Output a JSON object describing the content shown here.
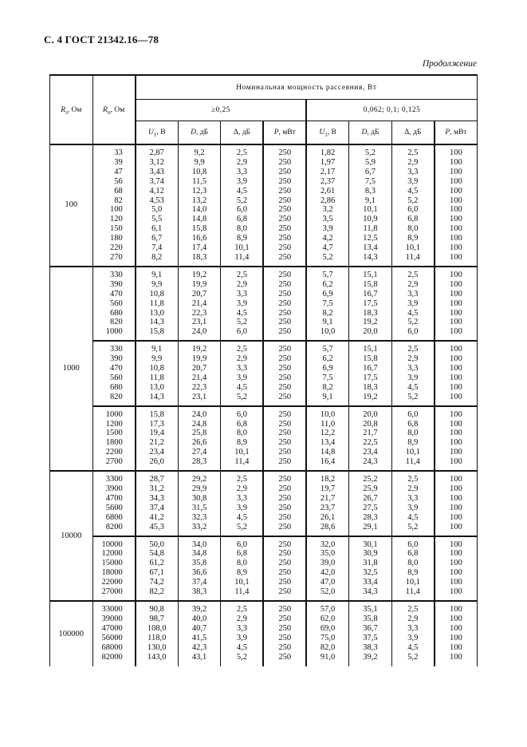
{
  "page": {
    "header_left": "С. 4 ГОСТ 21342.16—78",
    "continuation_label": "Продолжение"
  },
  "table": {
    "r3col": {
      "sym": "R",
      "sub": "з",
      "rest": ", Ом"
    },
    "rncol": {
      "sym": "R",
      "sub": "п",
      "rest": ", Ом"
    },
    "power_header": "Номинальная мощность рассеяния, Вт",
    "power_groups": [
      "≥0,25",
      "0,062; 0,1; 0,125"
    ],
    "columns": [
      {
        "sym": "U",
        "sub": "1",
        "rest": ", В"
      },
      {
        "sym": "D",
        "sub": "",
        "rest": ", дБ"
      },
      {
        "sym": "Δ",
        "sub": "",
        "rest": ", дБ"
      },
      {
        "sym": "P",
        "sub": "",
        "rest": ", мВт"
      },
      {
        "sym": "U",
        "sub": "1",
        "rest": ", В"
      },
      {
        "sym": "D",
        "sub": "",
        "rest": ", дБ"
      },
      {
        "sym": "Δ",
        "sub": "",
        "rest": ", дБ"
      },
      {
        "sym": "P",
        "sub": "",
        "rest": ", мВт"
      }
    ],
    "groups": [
      {
        "r3": "100",
        "subgroups": [
          {
            "rows": [
              [
                "33",
                "2,87",
                "9,2",
                "2,5",
                "250",
                "1,82",
                "5,2",
                "2,5",
                "100"
              ],
              [
                "39",
                "3,12",
                "9,9",
                "2,9",
                "250",
                "1,97",
                "5,9",
                "2,9",
                "100"
              ],
              [
                "47",
                "3,43",
                "10,8",
                "3,3",
                "250",
                "2,17",
                "6,7",
                "3,3",
                "100"
              ],
              [
                "56",
                "3,74",
                "11,5",
                "3,9",
                "250",
                "2,37",
                "7,5",
                "3,9",
                "100"
              ],
              [
                "68",
                "4,12",
                "12,3",
                "4,5",
                "250",
                "2,61",
                "8,3",
                "4,5",
                "100"
              ],
              [
                "82",
                "4,53",
                "13,2",
                "5,2",
                "250",
                "2,86",
                "9,1",
                "5,2",
                "100"
              ],
              [
                "100",
                "5,0",
                "14,0",
                "6,0",
                "250",
                "3,2",
                "10,1",
                "6,0",
                "100"
              ],
              [
                "120",
                "5,5",
                "14,8",
                "6,8",
                "250",
                "3,5",
                "10,9",
                "6,8",
                "100"
              ],
              [
                "150",
                "6,1",
                "15,8",
                "8,0",
                "250",
                "3,9",
                "11,8",
                "8,0",
                "100"
              ],
              [
                "180",
                "6,7",
                "16,6",
                "8,9",
                "250",
                "4,2",
                "12,5",
                "8,9",
                "100"
              ],
              [
                "220",
                "7,4",
                "17,4",
                "10,1",
                "250",
                "4,7",
                "13,4",
                "10,1",
                "100"
              ],
              [
                "270",
                "8,2",
                "18,3",
                "11,4",
                "250",
                "5,2",
                "14,3",
                "11,4",
                "100"
              ]
            ]
          }
        ]
      },
      {
        "r3": "1000",
        "subgroups": [
          {
            "rows": [
              [
                "330",
                "9,1",
                "19,2",
                "2,5",
                "250",
                "5,7",
                "15,1",
                "2,5",
                "100"
              ],
              [
                "390",
                "9,9",
                "19,9",
                "2,9",
                "250",
                "6,2",
                "15,8",
                "2,9",
                "100"
              ],
              [
                "470",
                "10,8",
                "20,7",
                "3,3",
                "250",
                "6,9",
                "16,7",
                "3,3",
                "100"
              ],
              [
                "560",
                "11,8",
                "21,4",
                "3,9",
                "250",
                "7,5",
                "17,5",
                "3,9",
                "100"
              ],
              [
                "680",
                "13,0",
                "22,3",
                "4,5",
                "250",
                "8,2",
                "18,3",
                "4,5",
                "100"
              ],
              [
                "820",
                "14,3",
                "23,1",
                "5,2",
                "250",
                "9,1",
                "19,2",
                "5,2",
                "100"
              ],
              [
                "1000",
                "15,8",
                "24,0",
                "6,0",
                "250",
                "10,0",
                "20,0",
                "6,0",
                "100"
              ]
            ]
          },
          {
            "rows": [
              [
                "330",
                "9,1",
                "19,2",
                "2,5",
                "250",
                "5,7",
                "15,1",
                "2,5",
                "100"
              ],
              [
                "390",
                "9,9",
                "19,9",
                "2,9",
                "250",
                "6,2",
                "15,8",
                "2,9",
                "100"
              ],
              [
                "470",
                "10,8",
                "20,7",
                "3,3",
                "250",
                "6,9",
                "16,7",
                "3,3",
                "100"
              ],
              [
                "560",
                "11,8",
                "21,4",
                "3,9",
                "250",
                "7,5",
                "17,5",
                "3,9",
                "100"
              ],
              [
                "680",
                "13,0",
                "22,3",
                "4,5",
                "250",
                "8,2",
                "18,3",
                "4,5",
                "100"
              ],
              [
                "820",
                "14,3",
                "23,1",
                "5,2",
                "250",
                "9,1",
                "19,2",
                "5,2",
                "100"
              ]
            ]
          },
          {
            "rows": [
              [
                "1000",
                "15,8",
                "24,0",
                "6,0",
                "250",
                "10,0",
                "20,0",
                "6,0",
                "100"
              ],
              [
                "1200",
                "17,3",
                "24,8",
                "6,8",
                "250",
                "11,0",
                "20,8",
                "6,8",
                "100"
              ],
              [
                "1500",
                "19,4",
                "25,8",
                "8,0",
                "250",
                "12,2",
                "21,7",
                "8,0",
                "100"
              ],
              [
                "1800",
                "21,2",
                "26,6",
                "8,9",
                "250",
                "13,4",
                "22,5",
                "8,9",
                "100"
              ],
              [
                "2200",
                "23,4",
                "27,4",
                "10,1",
                "250",
                "14,8",
                "23,4",
                "10,1",
                "100"
              ],
              [
                "2700",
                "26,0",
                "28,3",
                "11,4",
                "250",
                "16,4",
                "24,3",
                "11,4",
                "100"
              ]
            ]
          }
        ]
      },
      {
        "r3": "10000",
        "subgroups": [
          {
            "rows": [
              [
                "3300",
                "28,7",
                "29,2",
                "2,5",
                "250",
                "18,2",
                "25,2",
                "2,5",
                "100"
              ],
              [
                "3900",
                "31,2",
                "29,9",
                "2,9",
                "250",
                "19,7",
                "25,9",
                "2,9",
                "100"
              ],
              [
                "4700",
                "34,3",
                "30,8",
                "3,3",
                "250",
                "21,7",
                "26,7",
                "3,3",
                "100"
              ],
              [
                "5600",
                "37,4",
                "31,5",
                "3,9",
                "250",
                "23,7",
                "27,5",
                "3,9",
                "100"
              ],
              [
                "6800",
                "41,2",
                "32,3",
                "4,5",
                "250",
                "26,1",
                "28,3",
                "4,5",
                "100"
              ],
              [
                "8200",
                "45,3",
                "33,2",
                "5,2",
                "250",
                "28,6",
                "29,1",
                "5,2",
                "100"
              ]
            ]
          },
          {
            "rows": [
              [
                "10000",
                "50,0",
                "34,0",
                "6,0",
                "250",
                "32,0",
                "30,1",
                "6,0",
                "100"
              ],
              [
                "12000",
                "54,8",
                "34,8",
                "6,8",
                "250",
                "35,0",
                "30,9",
                "6,8",
                "100"
              ],
              [
                "15000",
                "61,2",
                "35,8",
                "8,0",
                "250",
                "39,0",
                "31,8",
                "8,0",
                "100"
              ],
              [
                "18000",
                "67,1",
                "36,6",
                "8,9",
                "250",
                "42,0",
                "32,5",
                "8,9",
                "100"
              ],
              [
                "22000",
                "74,2",
                "37,4",
                "10,1",
                "250",
                "47,0",
                "33,4",
                "10,1",
                "100"
              ],
              [
                "27000",
                "82,2",
                "38,3",
                "11,4",
                "250",
                "52,0",
                "34,3",
                "11,4",
                "100"
              ]
            ]
          }
        ]
      },
      {
        "r3": "100000",
        "subgroups": [
          {
            "rows": [
              [
                "33000",
                "90,8",
                "39,2",
                "2,5",
                "250",
                "57,0",
                "35,1",
                "2,5",
                "100"
              ],
              [
                "39000",
                "98,7",
                "40,0",
                "2,9",
                "250",
                "62,0",
                "35,8",
                "2,9",
                "100"
              ],
              [
                "47000",
                "108,0",
                "40,7",
                "3,3",
                "250",
                "69,0",
                "36,7",
                "3,3",
                "100"
              ],
              [
                "56000",
                "118,0",
                "41,5",
                "3,9",
                "250",
                "75,0",
                "37,5",
                "3,9",
                "100"
              ],
              [
                "68000",
                "130,0",
                "42,3",
                "4,5",
                "250",
                "82,0",
                "38,3",
                "4,5",
                "100"
              ],
              [
                "82000",
                "143,0",
                "43,1",
                "5,2",
                "250",
                "91,0",
                "39,2",
                "5,2",
                "100"
              ]
            ]
          }
        ]
      }
    ]
  }
}
